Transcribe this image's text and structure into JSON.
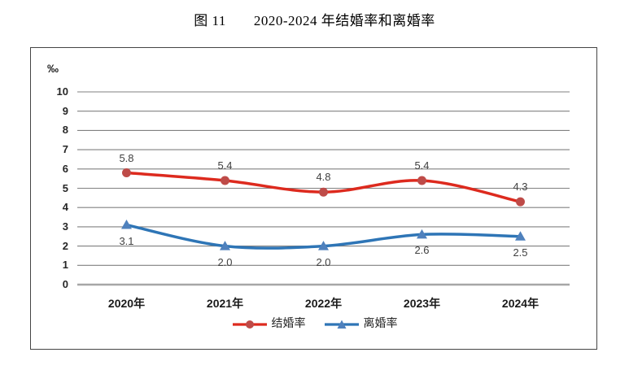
{
  "title": {
    "figure_label": "图 11",
    "text": "2020-2024 年结婚率和离婚率"
  },
  "chart_data": {
    "type": "line",
    "smoothed": true,
    "unit_label": "‰",
    "categories": [
      "2020年",
      "2021年",
      "2022年",
      "2023年",
      "2024年"
    ],
    "series": [
      {
        "name": "结婚率",
        "values": [
          5.8,
          5.4,
          4.8,
          5.4,
          4.3
        ],
        "data_labels": [
          "5.8",
          "5.4",
          "4.8",
          "5.4",
          "4.3"
        ],
        "color": "#DD2A1E",
        "marker_color": "#BE4B48",
        "marker": "circle",
        "label_position": "above"
      },
      {
        "name": "离婚率",
        "values": [
          3.1,
          2.0,
          2.0,
          2.6,
          2.5
        ],
        "data_labels": [
          "3.1",
          "2.0",
          "2.0",
          "2.6",
          "2.5"
        ],
        "color": "#2E75B6",
        "marker_color": "#4F81BD",
        "marker": "triangle",
        "label_position": "below"
      }
    ],
    "ylim": [
      0,
      10
    ],
    "ytick_step": 1,
    "grid": true,
    "gridline_color": "#808080",
    "axis_line_color": "#A6A6A6",
    "legend_position": "bottom"
  }
}
